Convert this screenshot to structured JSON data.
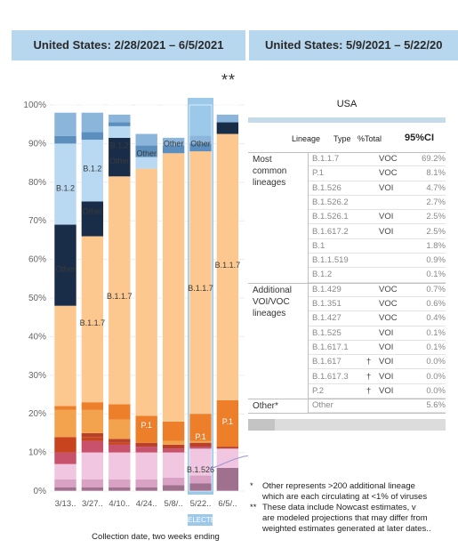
{
  "headers": {
    "left": "United States: 2/28/2021 – 6/5/2021",
    "right": "United States: 5/9/2021 – 5/22/20"
  },
  "stars": "**",
  "x_axis_title": "Collection date, two weeks ending",
  "selected_tag": "ELECTE",
  "colors": {
    "header_bg": "#b7d7ee",
    "B.1.1.7": "#fcc88f",
    "B.1.2": "#b8d9f1",
    "Other": "#1a2d48",
    "P.1": "#ee7f2a",
    "B.1.526": "#f0c6e0",
    "B.1.429": "#c8516b"
  },
  "chart_data": {
    "type": "bar",
    "stacked": true,
    "categories": [
      "3/13..",
      "3/27..",
      "4/10..",
      "4/24..",
      "5/8/..",
      "5/22..",
      "6/5/.."
    ],
    "y_ticks": [
      "0%",
      "10%",
      "20%",
      "30%",
      "40%",
      "50%",
      "60%",
      "70%",
      "80%",
      "90%",
      "100%"
    ],
    "ylim": [
      0,
      100
    ],
    "series": [
      {
        "id": "s1",
        "color": "#a0718f",
        "values": [
          1,
          1,
          1,
          1,
          1.5,
          2,
          6
        ]
      },
      {
        "id": "s2",
        "color": "#d9a2c5",
        "values": [
          2,
          2,
          2,
          2,
          2,
          2,
          0
        ]
      },
      {
        "id": "B.1.526",
        "name": "B.1.526",
        "color": "#f0c6e0",
        "values": [
          4,
          7,
          7,
          7,
          6.5,
          7,
          5
        ]
      },
      {
        "id": "s4",
        "color": "#c8516b",
        "values": [
          3,
          3,
          2,
          1.5,
          1,
          0.5,
          0
        ]
      },
      {
        "id": "s5",
        "color": "#c8441e",
        "values": [
          4,
          1,
          0.5,
          0,
          0,
          0,
          0
        ]
      },
      {
        "id": "s6",
        "color": "#b9412a",
        "values": [
          0,
          1,
          1,
          1,
          1,
          1,
          0.5
        ]
      },
      {
        "id": "s7",
        "color": "#f3a24e",
        "values": [
          7,
          6,
          5,
          0,
          1,
          0.5,
          0
        ]
      },
      {
        "id": "P.1",
        "name": "P.1",
        "color": "#ee7f2a",
        "values": [
          1,
          2,
          4,
          7,
          5,
          7,
          12
        ]
      },
      {
        "id": "B.1.1.7",
        "name": "B.1.1.7",
        "color": "#fcc88f",
        "values": [
          26,
          43,
          59,
          64,
          69.5,
          68,
          69
        ]
      },
      {
        "id": "Other",
        "name": "Other",
        "color": "#1a2d48",
        "values": [
          21,
          9,
          10,
          0,
          0,
          0,
          3
        ]
      },
      {
        "id": "B.1.2",
        "name": "B.1.2",
        "color": "#b8d9f1",
        "values": [
          21,
          16,
          3,
          3,
          0,
          0,
          0
        ]
      },
      {
        "id": "s12",
        "color": "#5c8fbe",
        "values": [
          2,
          2,
          1,
          3,
          2,
          2,
          0
        ]
      },
      {
        "id": "s13",
        "color": "#8cb5dc",
        "values": [
          6,
          5,
          2,
          3,
          2,
          2,
          2
        ]
      }
    ],
    "labels": [
      {
        "bar": 0,
        "text": "B.1.2",
        "y": 78.5,
        "light": false
      },
      {
        "bar": 0,
        "text": "Other",
        "y": 57.5,
        "light": false
      },
      {
        "bar": 1,
        "text": "Other",
        "y": 72.5,
        "light": false
      },
      {
        "bar": 1,
        "text": "B.1.1.7",
        "y": 43.5,
        "light": false
      },
      {
        "bar": 1,
        "text": "B.1.2",
        "y": 83.5,
        "light": false
      },
      {
        "bar": 2,
        "text": "B.1.2",
        "y": 89.5,
        "light": false
      },
      {
        "bar": 2,
        "text": "Other",
        "y": 85.5,
        "light": false
      },
      {
        "bar": 2,
        "text": "B.1.1.7",
        "y": 50.5,
        "light": false
      },
      {
        "bar": 3,
        "text": "Other",
        "y": 87.5,
        "light": false
      },
      {
        "bar": 3,
        "text": "P.1",
        "y": 17,
        "light": true
      },
      {
        "bar": 4,
        "text": "Other",
        "y": 90,
        "light": false
      },
      {
        "bar": 5,
        "text": "Other",
        "y": 90,
        "light": false
      },
      {
        "bar": 5,
        "text": "B.1.1.7",
        "y": 52.5,
        "light": false
      },
      {
        "bar": 5,
        "text": "P.1",
        "y": 14,
        "light": true
      },
      {
        "bar": 5,
        "text": "B.1.526",
        "y": 5.5,
        "light": false
      },
      {
        "bar": 6,
        "text": "B.1.1.7",
        "y": 58.5,
        "light": false
      },
      {
        "bar": 6,
        "text": "P.1",
        "y": 18,
        "light": true
      }
    ]
  },
  "table": {
    "title": "USA",
    "columns": {
      "lineage": "Lineage",
      "type": "Type",
      "pct": "%Total",
      "ci": "95%CI"
    },
    "groups": [
      {
        "name": "Most common lineages",
        "rows": [
          {
            "lineage": "B.1.1.7",
            "mark": "",
            "type": "VOC",
            "pct": "69.2%"
          },
          {
            "lineage": "P.1",
            "mark": "",
            "type": "VOC",
            "pct": "8.1%"
          },
          {
            "lineage": "B.1.526",
            "mark": "",
            "type": "VOI",
            "pct": "4.7%"
          },
          {
            "lineage": "B.1.526.2",
            "mark": "",
            "type": "",
            "pct": "2.7%"
          },
          {
            "lineage": "B.1.526.1",
            "mark": "",
            "type": "VOI",
            "pct": "2.5%"
          },
          {
            "lineage": "B.1.617.2",
            "mark": "",
            "type": "VOI",
            "pct": "2.5%"
          },
          {
            "lineage": "B.1",
            "mark": "",
            "type": "",
            "pct": "1.8%"
          },
          {
            "lineage": "B.1.1.519",
            "mark": "",
            "type": "",
            "pct": "0.9%"
          },
          {
            "lineage": "B.1.2",
            "mark": "",
            "type": "",
            "pct": "0.1%"
          }
        ]
      },
      {
        "name": "Additional VOI/VOC lineages",
        "rows": [
          {
            "lineage": "B.1.429",
            "mark": "",
            "type": "VOC",
            "pct": "0.7%"
          },
          {
            "lineage": "B.1.351",
            "mark": "",
            "type": "VOC",
            "pct": "0.6%"
          },
          {
            "lineage": "B.1.427",
            "mark": "",
            "type": "VOC",
            "pct": "0.4%"
          },
          {
            "lineage": "B.1.525",
            "mark": "",
            "type": "VOI",
            "pct": "0.1%"
          },
          {
            "lineage": "B.1.617.1",
            "mark": "",
            "type": "VOI",
            "pct": "0.1%"
          },
          {
            "lineage": "B.1.617",
            "mark": "†",
            "type": "VOI",
            "pct": "0.0%"
          },
          {
            "lineage": "B.1.617.3",
            "mark": "†",
            "type": "VOI",
            "pct": "0.0%"
          },
          {
            "lineage": "P.2",
            "mark": "†",
            "type": "VOI",
            "pct": "0.0%"
          }
        ]
      },
      {
        "name": "Other*",
        "rows": [
          {
            "lineage": "Other",
            "mark": "",
            "type": "",
            "pct": "5.6%"
          }
        ]
      }
    ]
  },
  "footnotes": [
    {
      "mark": "*",
      "text": "Other represents >200 additional lineage"
    },
    {
      "mark": "",
      "text": "which are each circulating at <1% of viruses"
    },
    {
      "mark": "**",
      "text": "These data include Nowcast estimates, v"
    },
    {
      "mark": "",
      "text": "are modeled projections that may differ from"
    },
    {
      "mark": "",
      "text": "weighted estimates generated at later dates.."
    }
  ]
}
